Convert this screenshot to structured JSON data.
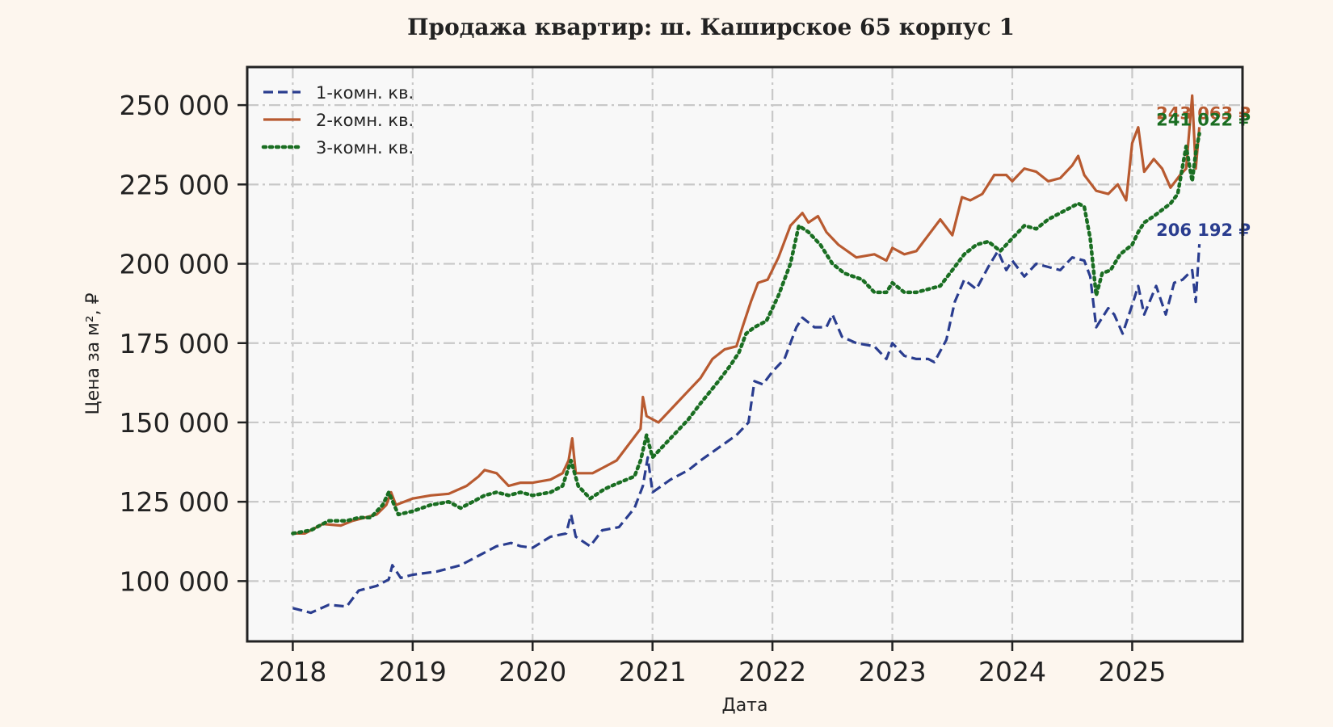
{
  "chart_data": {
    "type": "line",
    "title": "Продажа квартир: ш. Каширское 65 корпус 1",
    "xlabel": "Дата",
    "ylabel": "Цена за м², ₽",
    "xlim": [
      2017.62,
      2025.92
    ],
    "ylim": [
      81000,
      262000
    ],
    "x_ticks": [
      2018,
      2019,
      2020,
      2021,
      2022,
      2023,
      2024,
      2025
    ],
    "x_tick_labels": [
      "2018",
      "2019",
      "2020",
      "2021",
      "2022",
      "2023",
      "2024",
      "2025"
    ],
    "y_ticks": [
      100000,
      125000,
      150000,
      175000,
      200000,
      225000,
      250000
    ],
    "y_tick_labels": [
      "100 000",
      "125 000",
      "150 000",
      "175 000",
      "200 000",
      "225 000",
      "250 000"
    ],
    "grid": true,
    "legend_position": "top-left",
    "colors": {
      "background": "#fdf6ee",
      "plot_background": "#f8f8f8",
      "grid": "#c8c8c8",
      "axes": "#222222"
    },
    "series": [
      {
        "name": "1-комн. кв.",
        "color": "#2a3d8f",
        "line_style": "dashed",
        "end_label": "206 192 ₽",
        "points": [
          [
            2018.0,
            91500
          ],
          [
            2018.15,
            90000
          ],
          [
            2018.3,
            92500
          ],
          [
            2018.45,
            92000
          ],
          [
            2018.55,
            97000
          ],
          [
            2018.7,
            98500
          ],
          [
            2018.8,
            100500
          ],
          [
            2018.83,
            105000
          ],
          [
            2018.9,
            101000
          ],
          [
            2019.0,
            102000
          ],
          [
            2019.2,
            103000
          ],
          [
            2019.4,
            105000
          ],
          [
            2019.55,
            108000
          ],
          [
            2019.7,
            111000
          ],
          [
            2019.82,
            112000
          ],
          [
            2019.9,
            111000
          ],
          [
            2020.0,
            110500
          ],
          [
            2020.15,
            114000
          ],
          [
            2020.28,
            115000
          ],
          [
            2020.32,
            121000
          ],
          [
            2020.36,
            114000
          ],
          [
            2020.48,
            111000
          ],
          [
            2020.58,
            116000
          ],
          [
            2020.72,
            117000
          ],
          [
            2020.85,
            123000
          ],
          [
            2020.92,
            130000
          ],
          [
            2020.96,
            139000
          ],
          [
            2021.0,
            128000
          ],
          [
            2021.15,
            132000
          ],
          [
            2021.3,
            135000
          ],
          [
            2021.4,
            138000
          ],
          [
            2021.55,
            142000
          ],
          [
            2021.7,
            146000
          ],
          [
            2021.8,
            150000
          ],
          [
            2021.85,
            163000
          ],
          [
            2021.92,
            162000
          ],
          [
            2022.0,
            166000
          ],
          [
            2022.1,
            170000
          ],
          [
            2022.2,
            180000
          ],
          [
            2022.25,
            183000
          ],
          [
            2022.35,
            180000
          ],
          [
            2022.45,
            180000
          ],
          [
            2022.5,
            184000
          ],
          [
            2022.58,
            177000
          ],
          [
            2022.7,
            175000
          ],
          [
            2022.85,
            174000
          ],
          [
            2022.95,
            170000
          ],
          [
            2023.0,
            175000
          ],
          [
            2023.1,
            171000
          ],
          [
            2023.2,
            170000
          ],
          [
            2023.3,
            170000
          ],
          [
            2023.35,
            169000
          ],
          [
            2023.45,
            176000
          ],
          [
            2023.52,
            188000
          ],
          [
            2023.6,
            195000
          ],
          [
            2023.7,
            192000
          ],
          [
            2023.8,
            199000
          ],
          [
            2023.88,
            204000
          ],
          [
            2023.95,
            198000
          ],
          [
            2024.0,
            201000
          ],
          [
            2024.1,
            196000
          ],
          [
            2024.2,
            200000
          ],
          [
            2024.3,
            199000
          ],
          [
            2024.4,
            198000
          ],
          [
            2024.5,
            202000
          ],
          [
            2024.6,
            201000
          ],
          [
            2024.65,
            196000
          ],
          [
            2024.7,
            180000
          ],
          [
            2024.8,
            186000
          ],
          [
            2024.85,
            184000
          ],
          [
            2024.92,
            178000
          ],
          [
            2025.0,
            187000
          ],
          [
            2025.05,
            193000
          ],
          [
            2025.1,
            184000
          ],
          [
            2025.2,
            193000
          ],
          [
            2025.28,
            184000
          ],
          [
            2025.35,
            194000
          ],
          [
            2025.42,
            195000
          ],
          [
            2025.5,
            198000
          ],
          [
            2025.53,
            188000
          ],
          [
            2025.56,
            206192
          ]
        ]
      },
      {
        "name": "2-комн. кв.",
        "color": "#b85a30",
        "line_style": "solid",
        "end_label": "243 063 ₽",
        "points": [
          [
            2018.0,
            115000
          ],
          [
            2018.1,
            115000
          ],
          [
            2018.25,
            118000
          ],
          [
            2018.4,
            117500
          ],
          [
            2018.5,
            119000
          ],
          [
            2018.6,
            120000
          ],
          [
            2018.7,
            121000
          ],
          [
            2018.78,
            124000
          ],
          [
            2018.82,
            128000
          ],
          [
            2018.86,
            124000
          ],
          [
            2019.0,
            126000
          ],
          [
            2019.15,
            127000
          ],
          [
            2019.3,
            127500
          ],
          [
            2019.45,
            130000
          ],
          [
            2019.55,
            133000
          ],
          [
            2019.6,
            135000
          ],
          [
            2019.7,
            134000
          ],
          [
            2019.8,
            130000
          ],
          [
            2019.9,
            131000
          ],
          [
            2020.0,
            131000
          ],
          [
            2020.15,
            132000
          ],
          [
            2020.25,
            134000
          ],
          [
            2020.3,
            138000
          ],
          [
            2020.33,
            145000
          ],
          [
            2020.36,
            134000
          ],
          [
            2020.5,
            134000
          ],
          [
            2020.6,
            136000
          ],
          [
            2020.7,
            138000
          ],
          [
            2020.8,
            143000
          ],
          [
            2020.9,
            148000
          ],
          [
            2020.92,
            158000
          ],
          [
            2020.95,
            152000
          ],
          [
            2021.05,
            150000
          ],
          [
            2021.2,
            156000
          ],
          [
            2021.3,
            160000
          ],
          [
            2021.4,
            164000
          ],
          [
            2021.5,
            170000
          ],
          [
            2021.6,
            173000
          ],
          [
            2021.7,
            174000
          ],
          [
            2021.75,
            180000
          ],
          [
            2021.82,
            188000
          ],
          [
            2021.88,
            194000
          ],
          [
            2021.96,
            195000
          ],
          [
            2022.05,
            202000
          ],
          [
            2022.15,
            212000
          ],
          [
            2022.25,
            216000
          ],
          [
            2022.3,
            213000
          ],
          [
            2022.38,
            215000
          ],
          [
            2022.45,
            210000
          ],
          [
            2022.55,
            206000
          ],
          [
            2022.7,
            202000
          ],
          [
            2022.85,
            203000
          ],
          [
            2022.95,
            201000
          ],
          [
            2023.0,
            205000
          ],
          [
            2023.1,
            203000
          ],
          [
            2023.2,
            204000
          ],
          [
            2023.3,
            209000
          ],
          [
            2023.4,
            214000
          ],
          [
            2023.5,
            209000
          ],
          [
            2023.58,
            221000
          ],
          [
            2023.65,
            220000
          ],
          [
            2023.75,
            222000
          ],
          [
            2023.85,
            228000
          ],
          [
            2023.95,
            228000
          ],
          [
            2024.0,
            226000
          ],
          [
            2024.1,
            230000
          ],
          [
            2024.2,
            229000
          ],
          [
            2024.3,
            226000
          ],
          [
            2024.4,
            227000
          ],
          [
            2024.5,
            231000
          ],
          [
            2024.55,
            234000
          ],
          [
            2024.6,
            228000
          ],
          [
            2024.7,
            223000
          ],
          [
            2024.8,
            222000
          ],
          [
            2024.88,
            225000
          ],
          [
            2024.95,
            220000
          ],
          [
            2025.0,
            238000
          ],
          [
            2025.05,
            243000
          ],
          [
            2025.1,
            229000
          ],
          [
            2025.18,
            233000
          ],
          [
            2025.25,
            230000
          ],
          [
            2025.32,
            224000
          ],
          [
            2025.4,
            228000
          ],
          [
            2025.45,
            230000
          ],
          [
            2025.5,
            253000
          ],
          [
            2025.53,
            230000
          ],
          [
            2025.56,
            243063
          ]
        ]
      },
      {
        "name": "3-комн. кв.",
        "color": "#1a6e22",
        "line_style": "dotted",
        "end_label": "241 022 ₽",
        "points": [
          [
            2018.0,
            115000
          ],
          [
            2018.15,
            116000
          ],
          [
            2018.3,
            119000
          ],
          [
            2018.45,
            119000
          ],
          [
            2018.55,
            120000
          ],
          [
            2018.65,
            120000
          ],
          [
            2018.75,
            124000
          ],
          [
            2018.8,
            128000
          ],
          [
            2018.88,
            121000
          ],
          [
            2019.0,
            122000
          ],
          [
            2019.15,
            124000
          ],
          [
            2019.3,
            125000
          ],
          [
            2019.4,
            123000
          ],
          [
            2019.5,
            125000
          ],
          [
            2019.6,
            127000
          ],
          [
            2019.7,
            128000
          ],
          [
            2019.8,
            127000
          ],
          [
            2019.9,
            128000
          ],
          [
            2020.0,
            127000
          ],
          [
            2020.15,
            128000
          ],
          [
            2020.25,
            130000
          ],
          [
            2020.32,
            138000
          ],
          [
            2020.38,
            130000
          ],
          [
            2020.48,
            126000
          ],
          [
            2020.6,
            129000
          ],
          [
            2020.72,
            131000
          ],
          [
            2020.85,
            133000
          ],
          [
            2020.9,
            138000
          ],
          [
            2020.95,
            146000
          ],
          [
            2021.0,
            139000
          ],
          [
            2021.15,
            145000
          ],
          [
            2021.3,
            151000
          ],
          [
            2021.4,
            156000
          ],
          [
            2021.55,
            163000
          ],
          [
            2021.65,
            168000
          ],
          [
            2021.72,
            172000
          ],
          [
            2021.78,
            178000
          ],
          [
            2021.85,
            180000
          ],
          [
            2021.95,
            182000
          ],
          [
            2022.05,
            190000
          ],
          [
            2022.15,
            200000
          ],
          [
            2022.22,
            212000
          ],
          [
            2022.3,
            210000
          ],
          [
            2022.4,
            206000
          ],
          [
            2022.5,
            200000
          ],
          [
            2022.6,
            197000
          ],
          [
            2022.75,
            195000
          ],
          [
            2022.85,
            191000
          ],
          [
            2022.95,
            191000
          ],
          [
            2023.0,
            194000
          ],
          [
            2023.1,
            191000
          ],
          [
            2023.2,
            191000
          ],
          [
            2023.3,
            192000
          ],
          [
            2023.4,
            193000
          ],
          [
            2023.5,
            198000
          ],
          [
            2023.6,
            203000
          ],
          [
            2023.7,
            206000
          ],
          [
            2023.8,
            207000
          ],
          [
            2023.9,
            204000
          ],
          [
            2024.0,
            208000
          ],
          [
            2024.1,
            212000
          ],
          [
            2024.2,
            211000
          ],
          [
            2024.3,
            214000
          ],
          [
            2024.4,
            216000
          ],
          [
            2024.5,
            218000
          ],
          [
            2024.55,
            219000
          ],
          [
            2024.6,
            218000
          ],
          [
            2024.65,
            208000
          ],
          [
            2024.7,
            190000
          ],
          [
            2024.75,
            197000
          ],
          [
            2024.82,
            198000
          ],
          [
            2024.9,
            203000
          ],
          [
            2025.0,
            206000
          ],
          [
            2025.05,
            210000
          ],
          [
            2025.1,
            213000
          ],
          [
            2025.18,
            215000
          ],
          [
            2025.25,
            217000
          ],
          [
            2025.32,
            219000
          ],
          [
            2025.38,
            222000
          ],
          [
            2025.45,
            237000
          ],
          [
            2025.5,
            226000
          ],
          [
            2025.53,
            235000
          ],
          [
            2025.56,
            241022
          ]
        ]
      }
    ]
  }
}
